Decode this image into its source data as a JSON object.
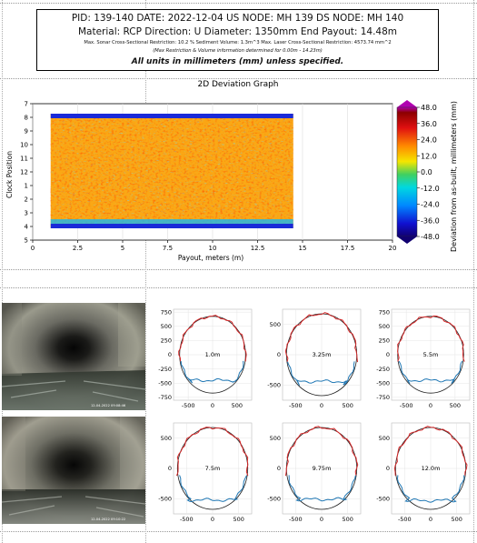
{
  "header": {
    "line1": "PID: 139-140   DATE: 2022-12-04   US NODE: MH 139   DS NODE: MH 140",
    "line2": "Material: RCP   Direction: U   Diameter: 1350mm   End Payout: 14.48m",
    "line3": "Max. Sonar Cross-Sectional Restriction: 10.2 %  Sediment Volume: 1.3m^3   Max. Laser Cross-Sectional Restriction: 4573.74  mm^2",
    "line4": "(Max Restriction & Volume information determined for 0.00m - 14.23m)",
    "line5": "All units in millimeters (mm) unless specified."
  },
  "photos": [
    {
      "stamp": "12-04-2022 09:08:46"
    },
    {
      "stamp": "12-04-2022 09:10:22"
    }
  ],
  "chart_data": [
    {
      "type": "heatmap",
      "title": "2D Deviation Graph",
      "xlabel": "Payout, meters (m)",
      "ylabel": "Clock Position",
      "xlim": [
        0,
        20
      ],
      "xticks": [
        "0",
        "2.5",
        "5",
        "7.5",
        "10",
        "12.5",
        "15",
        "17.5",
        "20"
      ],
      "yticks": [
        "7",
        "8",
        "9",
        "10",
        "11",
        "12",
        "1",
        "2",
        "3",
        "4",
        "5"
      ],
      "data_x_range": [
        1.0,
        14.48
      ],
      "colorbar": {
        "label": "Deviation from as-built, millimeters (mm)",
        "ticks": [
          "48.0",
          "36.0",
          "24.0",
          "12.0",
          "0.0",
          "-12.0",
          "-24.0",
          "-36.0",
          "-48.0"
        ],
        "range": [
          -48,
          48
        ]
      }
    },
    {
      "type": "line",
      "label": "1.0m",
      "xticks": [
        "-500",
        "0",
        "500"
      ],
      "yticks": [
        "750",
        "500",
        "250",
        "0",
        "-250",
        "-500",
        "-750"
      ],
      "lim": [
        -800,
        800
      ],
      "water_level": -450
    },
    {
      "type": "line",
      "label": "3.25m",
      "xticks": [
        "-500",
        "0",
        "500"
      ],
      "yticks": [
        "500",
        "0",
        "-500"
      ],
      "lim": [
        -750,
        750
      ],
      "water_level": -440
    },
    {
      "type": "line",
      "label": "5.5m",
      "xticks": [
        "-500",
        "0",
        "500"
      ],
      "yticks": [
        "750",
        "500",
        "250",
        "0",
        "-250",
        "-500",
        "-750"
      ],
      "lim": [
        -800,
        800
      ],
      "water_level": -450
    },
    {
      "type": "line",
      "label": "7.5m",
      "xticks": [
        "-500",
        "0",
        "500"
      ],
      "yticks": [
        "500",
        "0",
        "-500"
      ],
      "lim": [
        -750,
        750
      ],
      "water_level": -520
    },
    {
      "type": "line",
      "label": "9.75m",
      "xticks": [
        "-500",
        "0",
        "500"
      ],
      "yticks": [
        "500",
        "0",
        "-500"
      ],
      "lim": [
        -750,
        750
      ],
      "water_level": -510
    },
    {
      "type": "line",
      "label": "12.0m",
      "xticks": [
        "-500",
        "0",
        "500"
      ],
      "yticks": [
        "500",
        "0",
        "-500"
      ],
      "lim": [
        -750,
        750
      ],
      "water_level": -530
    }
  ],
  "colors": {
    "profile_top": "#d62728",
    "profile_bottom": "#1f77b4",
    "asbuilt": "#222222"
  }
}
